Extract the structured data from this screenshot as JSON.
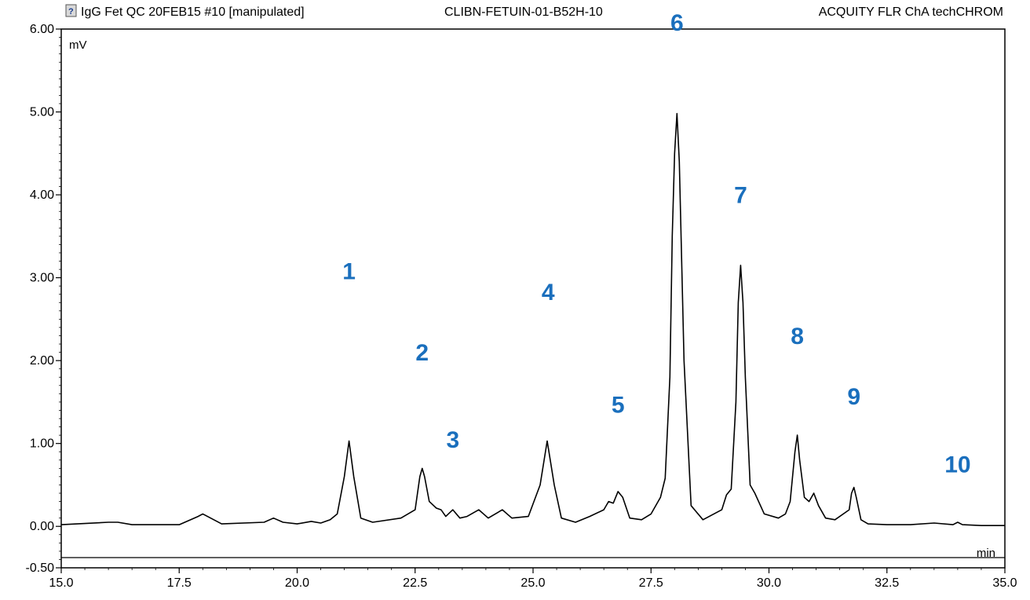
{
  "header": {
    "title": "IgG Fet QC 20FEB15 #10 [manipulated]",
    "sample": "CLIBN-FETUIN-01-B52H-10",
    "channel": "ACQUITY FLR ChA techCHROM"
  },
  "chart_data": {
    "type": "line",
    "title": "IgG Fet QC 20FEB15 #10 [manipulated]",
    "xlabel": "min",
    "ylabel": "mV",
    "xlim": [
      15.0,
      35.0
    ],
    "ylim": [
      -0.5,
      6.0
    ],
    "x_ticks": [
      "15.0",
      "17.5",
      "20.0",
      "22.5",
      "25.0",
      "27.5",
      "30.0",
      "32.5",
      "35.0"
    ],
    "y_ticks": [
      "-0.50",
      "0.00",
      "1.00",
      "2.00",
      "3.00",
      "4.00",
      "5.00",
      "6.00"
    ],
    "grid": false,
    "baseline": 0.02,
    "peaks": [
      {
        "label": "1",
        "rt": 21.1,
        "height": 1.03
      },
      {
        "label": "2",
        "rt": 22.65,
        "height": 0.7
      },
      {
        "label": "3",
        "rt": 23.3,
        "height": 0.2
      },
      {
        "label": "4",
        "rt": 25.32,
        "height": 1.03
      },
      {
        "label": "5",
        "rt": 26.8,
        "height": 0.42
      },
      {
        "label": "6",
        "rt": 28.05,
        "height": 4.98
      },
      {
        "label": "7",
        "rt": 29.4,
        "height": 3.15
      },
      {
        "label": "8",
        "rt": 30.6,
        "height": 1.1
      },
      {
        "label": "9",
        "rt": 31.8,
        "height": 0.47
      },
      {
        "label": "10",
        "rt": 34.0,
        "height": 0.05
      }
    ],
    "series": [
      {
        "x": [
          15.0,
          16.0,
          16.2,
          16.5,
          17.5,
          17.9,
          18.0,
          18.1,
          18.4,
          19.3,
          19.5,
          19.7,
          20.0,
          20.3,
          20.5,
          20.7,
          20.85,
          21.0,
          21.1,
          21.2,
          21.35,
          21.6,
          22.2,
          22.5,
          22.6,
          22.65,
          22.7,
          22.8,
          22.95,
          23.05,
          23.15,
          23.3,
          23.45,
          23.6,
          23.85,
          24.05,
          24.35,
          24.55,
          24.9,
          25.15,
          25.3,
          25.45,
          25.6,
          25.9,
          26.2,
          26.5,
          26.6,
          26.7,
          26.8,
          26.9,
          27.05,
          27.3,
          27.5,
          27.7,
          27.8,
          27.9,
          27.95,
          28.0,
          28.05,
          28.1,
          28.15,
          28.2,
          28.35,
          28.6,
          29.0,
          29.1,
          29.2,
          29.3,
          29.35,
          29.4,
          29.45,
          29.5,
          29.6,
          29.7,
          29.9,
          30.2,
          30.35,
          30.45,
          30.55,
          30.6,
          30.65,
          30.75,
          30.85,
          30.95,
          31.05,
          31.2,
          31.4,
          31.7,
          31.75,
          31.8,
          31.85,
          31.95,
          32.1,
          32.5,
          33.0,
          33.5,
          33.9,
          34.0,
          34.1,
          34.5,
          35.0
        ],
        "y": [
          0.02,
          0.05,
          0.05,
          0.02,
          0.02,
          0.12,
          0.15,
          0.12,
          0.03,
          0.05,
          0.1,
          0.05,
          0.03,
          0.06,
          0.04,
          0.08,
          0.15,
          0.6,
          1.03,
          0.6,
          0.1,
          0.05,
          0.1,
          0.2,
          0.6,
          0.7,
          0.6,
          0.3,
          0.22,
          0.2,
          0.12,
          0.2,
          0.1,
          0.12,
          0.2,
          0.1,
          0.2,
          0.1,
          0.12,
          0.5,
          1.03,
          0.5,
          0.1,
          0.05,
          0.12,
          0.2,
          0.3,
          0.28,
          0.42,
          0.35,
          0.1,
          0.08,
          0.15,
          0.35,
          0.58,
          1.8,
          3.5,
          4.5,
          4.98,
          4.4,
          3.2,
          2.0,
          0.25,
          0.08,
          0.2,
          0.38,
          0.45,
          1.5,
          2.7,
          3.15,
          2.7,
          1.8,
          0.5,
          0.4,
          0.15,
          0.1,
          0.15,
          0.3,
          0.9,
          1.1,
          0.8,
          0.35,
          0.3,
          0.4,
          0.25,
          0.1,
          0.08,
          0.2,
          0.4,
          0.47,
          0.35,
          0.08,
          0.03,
          0.02,
          0.02,
          0.04,
          0.02,
          0.05,
          0.02,
          0.01,
          0.01
        ]
      }
    ]
  }
}
